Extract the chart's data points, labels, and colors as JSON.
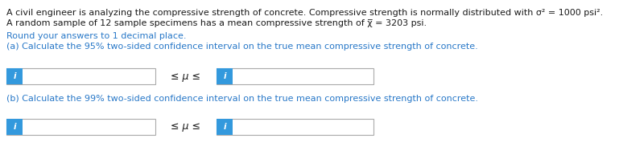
{
  "line1": "A civil engineer is analyzing the compressive strength of concrete. Compressive strength is normally distributed with σ² = 1000 psi².",
  "line2": "A random sample of 12 sample specimens has a mean compressive strength of χ̅ = 3203 psi.",
  "line3": "Round your answers to 1 decimal place.",
  "line4a": "(a) Calculate the 95% two-sided confidence interval on the true mean compressive strength of concrete.",
  "line4b": "(b) Calculate the 99% two-sided confidence interval on the true mean compressive strength of concrete.",
  "mu_text": "≤ μ ≤",
  "info_icon": "i",
  "text_color_dark": "#1a1a1a",
  "text_color_blue": "#2878c8",
  "box_border_color": "#aaaaaa",
  "info_bg_color": "#3399dd",
  "info_text_color": "#ffffff",
  "background_color": "#ffffff",
  "font_size_main": 8.0,
  "font_size_blue": 8.0
}
